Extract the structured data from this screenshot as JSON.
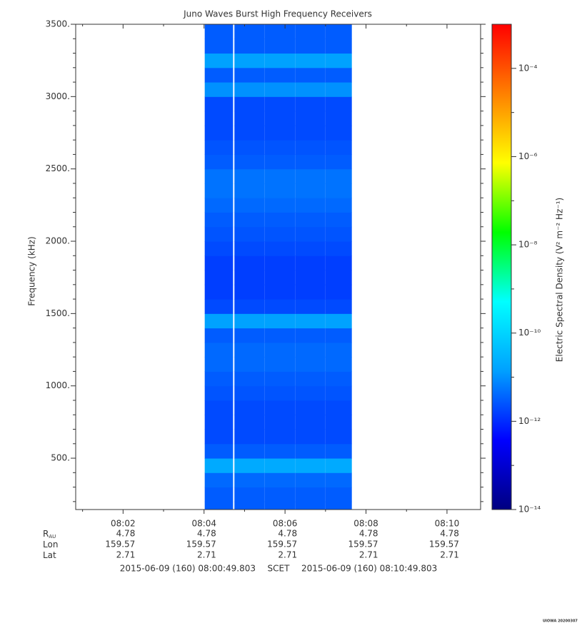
{
  "chart_data": {
    "type": "spectrogram",
    "title": "Juno Waves Burst High Frequency Receivers",
    "ylabel": "Frequency (kHz)",
    "zlabel": "Electric Spectral Density (V² m⁻² Hz⁻¹)",
    "xlim": [
      "08:00:49.803",
      "08:10:49.803"
    ],
    "xticks": [
      "08:02",
      "08:04",
      "08:06",
      "08:08",
      "08:10"
    ],
    "xminor": [
      "08:01",
      "08:03",
      "08:05",
      "08:07",
      "08:09"
    ],
    "ylim": [
      145,
      3500
    ],
    "yticks": [
      {
        "value": 500,
        "label": "500."
      },
      {
        "value": 1000,
        "label": "1000."
      },
      {
        "value": 1500,
        "label": "1500."
      },
      {
        "value": 2000,
        "label": "2000."
      },
      {
        "value": 2500,
        "label": "2500."
      },
      {
        "value": 3000,
        "label": "3000."
      },
      {
        "value": 3500,
        "label": "3500."
      }
    ],
    "yminor": [
      200,
      300,
      400,
      600,
      700,
      800,
      900,
      1100,
      1200,
      1300,
      1400,
      1600,
      1700,
      1800,
      1900,
      2100,
      2200,
      2300,
      2400,
      2600,
      2700,
      2800,
      2900,
      3100,
      3200,
      3300,
      3400
    ],
    "zscale": "log",
    "zlim": [
      1e-14,
      0.001
    ],
    "zticks": [
      {
        "value": 1e-14,
        "label": "10⁻¹⁴"
      },
      {
        "value": 1e-12,
        "label": "10⁻¹²"
      },
      {
        "value": 1e-10,
        "label": "10⁻¹⁰"
      },
      {
        "value": 1e-08,
        "label": "10⁻⁸"
      },
      {
        "value": 1e-06,
        "label": "10⁻⁶"
      },
      {
        "value": 0.0001,
        "label": "10⁻⁴"
      }
    ],
    "zminor": [
      1e-13,
      1e-11,
      1e-09,
      1e-07,
      1e-05
    ],
    "colormap": [
      "#000080",
      "#0000ff",
      "#00a0ff",
      "#00ffff",
      "#00ff00",
      "#ffff00",
      "#ff8000",
      "#ff0000"
    ],
    "time_bins": [
      "08:04:01",
      "08:04:43",
      "08:04:45",
      "08:05:30",
      "08:06:15",
      "08:07:00",
      "08:07:39"
    ],
    "freq_bins": [
      145,
      200,
      300,
      400,
      500,
      600,
      700,
      800,
      900,
      1000,
      1100,
      1200,
      1300,
      1400,
      1500,
      1600,
      1700,
      1800,
      1900,
      2000,
      2100,
      2200,
      2300,
      2400,
      2500,
      2600,
      2700,
      2800,
      2900,
      3000,
      3100,
      3200,
      3300,
      3400,
      3500
    ],
    "values": [
      [
        3e-12,
        null,
        3e-12,
        3e-12,
        3e-12,
        3e-12
      ],
      [
        3e-12,
        null,
        3e-12,
        3e-12,
        3e-12,
        3e-12
      ],
      [
        4e-12,
        null,
        4e-12,
        4e-12,
        4e-12,
        4e-12
      ],
      [
        2e-11,
        null,
        2e-11,
        2e-11,
        2e-11,
        2e-11
      ],
      [
        3e-12,
        null,
        3e-12,
        3e-12,
        3e-12,
        3e-12
      ],
      [
        2e-12,
        null,
        2e-12,
        2e-12,
        2e-12,
        2e-12
      ],
      [
        2e-12,
        null,
        2e-12,
        2e-12,
        2e-12,
        2e-12
      ],
      [
        2e-12,
        null,
        2e-12,
        2e-12,
        2e-12,
        2e-12
      ],
      [
        2.5e-12,
        null,
        2.5e-12,
        2.5e-12,
        2.5e-12,
        2.5e-12
      ],
      [
        3e-12,
        null,
        3e-12,
        3e-12,
        3e-12,
        3e-12
      ],
      [
        4e-12,
        null,
        4e-12,
        4e-12,
        4e-12,
        4e-12
      ],
      [
        4e-12,
        null,
        4e-12,
        4e-12,
        4e-12,
        4e-12
      ],
      [
        3e-12,
        null,
        3e-12,
        3e-12,
        3e-12,
        3e-12
      ],
      [
        1.5e-11,
        null,
        1.5e-11,
        1.5e-11,
        1.5e-11,
        1.5e-11
      ],
      [
        2e-12,
        null,
        2e-12,
        2e-12,
        2e-12,
        2e-12
      ],
      [
        1.5e-12,
        null,
        1.5e-12,
        1.5e-12,
        1.5e-12,
        1.5e-12
      ],
      [
        1.5e-12,
        null,
        1.5e-12,
        1.5e-12,
        1.5e-12,
        1.5e-12
      ],
      [
        1.5e-12,
        null,
        1.5e-12,
        1.5e-12,
        1.5e-12,
        1.5e-12
      ],
      [
        2e-12,
        null,
        2e-12,
        2e-12,
        2e-12,
        2e-12
      ],
      [
        2.5e-12,
        null,
        2.5e-12,
        2.5e-12,
        2.5e-12,
        2.5e-12
      ],
      [
        3e-12,
        null,
        3e-12,
        3e-12,
        3e-12,
        3e-12
      ],
      [
        4e-12,
        null,
        4e-12,
        4e-12,
        4e-12,
        4e-12
      ],
      [
        5e-12,
        null,
        5e-12,
        5e-12,
        5e-12,
        5e-12
      ],
      [
        5e-12,
        null,
        5e-12,
        5e-12,
        5e-12,
        5e-12
      ],
      [
        3e-12,
        null,
        3e-12,
        3e-12,
        3e-12,
        3e-12
      ],
      [
        2.5e-12,
        null,
        2.5e-12,
        2.5e-12,
        2.5e-12,
        2.5e-12
      ],
      [
        2e-12,
        null,
        2e-12,
        2e-12,
        2e-12,
        2e-12
      ],
      [
        2e-12,
        null,
        2e-12,
        2e-12,
        2e-12,
        2e-12
      ],
      [
        2e-12,
        null,
        2e-12,
        2e-12,
        2e-12,
        2e-12
      ],
      [
        1e-11,
        null,
        1e-11,
        1e-11,
        1e-11,
        1e-11
      ],
      [
        3e-12,
        null,
        3e-12,
        3e-12,
        3e-12,
        3e-12
      ],
      [
        1.5e-11,
        null,
        1.5e-11,
        1.5e-11,
        1.5e-11,
        1.5e-11
      ],
      [
        3e-12,
        null,
        3e-12,
        3e-12,
        3e-12,
        3e-12
      ],
      [
        3e-12,
        null,
        3e-12,
        3e-12,
        3e-12,
        3e-12
      ]
    ],
    "ephemeris": [
      {
        "label": "R",
        "sub": "AU",
        "values": [
          4.78,
          4.78,
          4.78,
          4.78,
          4.78
        ]
      },
      {
        "label": "Lon",
        "values": [
          159.57,
          159.57,
          159.57,
          159.57,
          159.57
        ]
      },
      {
        "label": "Lat",
        "values": [
          2.71,
          2.71,
          2.71,
          2.71,
          2.71
        ]
      }
    ],
    "footer": {
      "start": "2015-06-09 (160) 08:00:49.803",
      "scet": "SCET",
      "end": "2015-06-09 (160) 08:10:49.803"
    },
    "stamp": "UIOWA 20200307"
  }
}
